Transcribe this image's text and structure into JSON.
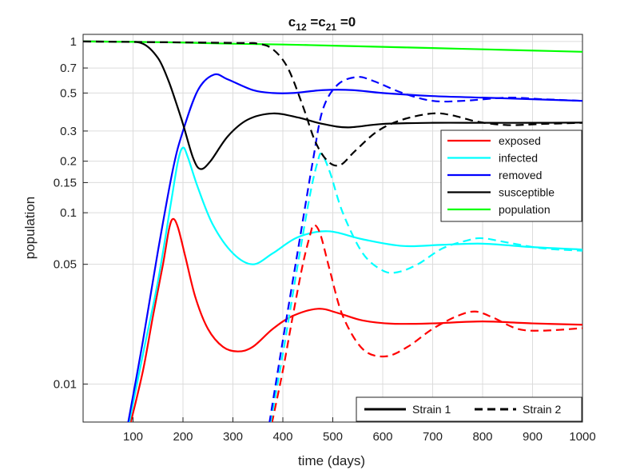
{
  "chart_data": {
    "type": "line",
    "title": {
      "c1": "c",
      "s1": "12",
      "eq1": " =c",
      "s2": "21",
      "eq2": " =0"
    },
    "xlabel": "time (days)",
    "ylabel": "population",
    "xlim": [
      0,
      1000
    ],
    "ylim": [
      0.006,
      1.1
    ],
    "yscale": "log",
    "grid": true,
    "x_ticks": [
      100,
      200,
      300,
      400,
      500,
      600,
      700,
      800,
      900,
      1000
    ],
    "x_tick_labels": [
      "100",
      "200",
      "300",
      "400",
      "500",
      "600",
      "700",
      "800",
      "900",
      "1000"
    ],
    "y_ticks": [
      0.01,
      0.05,
      0.1,
      0.15,
      0.2,
      0.3,
      0.5,
      0.7,
      1
    ],
    "y_tick_labels": [
      "0.01",
      "0.05",
      "0.1",
      "0.15",
      "0.2",
      "0.3",
      "0.5",
      "0.7",
      "1"
    ],
    "legend_location": "upper-right",
    "legend": [
      {
        "label": "exposed",
        "color": "#ff0000"
      },
      {
        "label": "infected",
        "color": "#00ffff"
      },
      {
        "label": "removed",
        "color": "#0000ff"
      },
      {
        "label": "susceptible",
        "color": "#000000"
      },
      {
        "label": "population",
        "color": "#00ff00"
      }
    ],
    "style_legend_location": "bottom-right",
    "style_legend": [
      {
        "label": "Strain 1",
        "dash": "solid"
      },
      {
        "label": "Strain 2",
        "dash": "dashed"
      }
    ],
    "series": [
      {
        "name": "exposed",
        "strain": "Strain 1",
        "color": "#ff0000",
        "dash": "solid",
        "points": [
          [
            95,
            0.0059
          ],
          [
            120,
            0.012
          ],
          [
            140,
            0.025
          ],
          [
            160,
            0.05
          ],
          [
            172,
            0.08
          ],
          [
            180,
            0.092
          ],
          [
            190,
            0.082
          ],
          [
            205,
            0.055
          ],
          [
            225,
            0.032
          ],
          [
            250,
            0.021
          ],
          [
            280,
            0.0165
          ],
          [
            310,
            0.0155
          ],
          [
            340,
            0.0165
          ],
          [
            380,
            0.021
          ],
          [
            420,
            0.025
          ],
          [
            470,
            0.0275
          ],
          [
            510,
            0.026
          ],
          [
            560,
            0.0235
          ],
          [
            620,
            0.0225
          ],
          [
            700,
            0.0226
          ],
          [
            800,
            0.0232
          ],
          [
            900,
            0.0226
          ],
          [
            1000,
            0.0222
          ]
        ]
      },
      {
        "name": "infected",
        "strain": "Strain 1",
        "color": "#00ffff",
        "dash": "solid",
        "points": [
          [
            92,
            0.0059
          ],
          [
            120,
            0.015
          ],
          [
            150,
            0.04
          ],
          [
            175,
            0.11
          ],
          [
            190,
            0.2
          ],
          [
            200,
            0.24
          ],
          [
            210,
            0.21
          ],
          [
            230,
            0.14
          ],
          [
            260,
            0.085
          ],
          [
            300,
            0.058
          ],
          [
            340,
            0.05
          ],
          [
            380,
            0.058
          ],
          [
            430,
            0.072
          ],
          [
            490,
            0.078
          ],
          [
            560,
            0.07
          ],
          [
            640,
            0.064
          ],
          [
            720,
            0.065
          ],
          [
            800,
            0.066
          ],
          [
            900,
            0.063
          ],
          [
            1000,
            0.061
          ]
        ]
      },
      {
        "name": "removed",
        "strain": "Strain 1",
        "color": "#0000ff",
        "dash": "solid",
        "points": [
          [
            90,
            0.0059
          ],
          [
            120,
            0.018
          ],
          [
            150,
            0.06
          ],
          [
            180,
            0.18
          ],
          [
            200,
            0.3
          ],
          [
            230,
            0.52
          ],
          [
            262,
            0.64
          ],
          [
            290,
            0.6
          ],
          [
            340,
            0.52
          ],
          [
            380,
            0.5
          ],
          [
            420,
            0.5
          ],
          [
            480,
            0.52
          ],
          [
            540,
            0.52
          ],
          [
            600,
            0.5
          ],
          [
            700,
            0.48
          ],
          [
            800,
            0.47
          ],
          [
            900,
            0.46
          ],
          [
            1000,
            0.45
          ]
        ]
      },
      {
        "name": "susceptible",
        "strain": "Strain 1",
        "color": "#000000",
        "dash": "solid",
        "points": [
          [
            0,
            1
          ],
          [
            80,
            0.995
          ],
          [
            120,
            0.97
          ],
          [
            150,
            0.8
          ],
          [
            170,
            0.6
          ],
          [
            185,
            0.45
          ],
          [
            200,
            0.33
          ],
          [
            220,
            0.21
          ],
          [
            235,
            0.18
          ],
          [
            255,
            0.2
          ],
          [
            290,
            0.28
          ],
          [
            330,
            0.35
          ],
          [
            380,
            0.38
          ],
          [
            430,
            0.36
          ],
          [
            480,
            0.33
          ],
          [
            530,
            0.315
          ],
          [
            600,
            0.33
          ],
          [
            700,
            0.335
          ],
          [
            800,
            0.335
          ],
          [
            900,
            0.335
          ],
          [
            1000,
            0.336
          ]
        ]
      },
      {
        "name": "population",
        "strain": "Strain 1",
        "color": "#00ff00",
        "dash": "solid",
        "points": [
          [
            0,
            1
          ],
          [
            100,
            0.995
          ],
          [
            200,
            0.985
          ],
          [
            300,
            0.97
          ],
          [
            400,
            0.96
          ],
          [
            500,
            0.945
          ],
          [
            600,
            0.93
          ],
          [
            700,
            0.915
          ],
          [
            800,
            0.9
          ],
          [
            900,
            0.885
          ],
          [
            1000,
            0.87
          ]
        ]
      },
      {
        "name": "exposed",
        "strain": "Strain 2",
        "color": "#ff0000",
        "dash": "dashed",
        "points": [
          [
            378,
            0.0059
          ],
          [
            400,
            0.012
          ],
          [
            420,
            0.025
          ],
          [
            440,
            0.05
          ],
          [
            455,
            0.075
          ],
          [
            462,
            0.085
          ],
          [
            475,
            0.075
          ],
          [
            495,
            0.045
          ],
          [
            520,
            0.025
          ],
          [
            560,
            0.016
          ],
          [
            605,
            0.0145
          ],
          [
            650,
            0.0165
          ],
          [
            700,
            0.021
          ],
          [
            750,
            0.025
          ],
          [
            785,
            0.0265
          ],
          [
            820,
            0.0245
          ],
          [
            870,
            0.021
          ],
          [
            920,
            0.0205
          ],
          [
            1000,
            0.0212
          ]
        ]
      },
      {
        "name": "infected",
        "strain": "Strain 2",
        "color": "#00ffff",
        "dash": "dashed",
        "points": [
          [
            375,
            0.0059
          ],
          [
            400,
            0.015
          ],
          [
            430,
            0.05
          ],
          [
            455,
            0.13
          ],
          [
            470,
            0.2
          ],
          [
            478,
            0.22
          ],
          [
            495,
            0.17
          ],
          [
            520,
            0.1
          ],
          [
            560,
            0.058
          ],
          [
            600,
            0.046
          ],
          [
            630,
            0.045
          ],
          [
            670,
            0.05
          ],
          [
            720,
            0.062
          ],
          [
            770,
            0.069
          ],
          [
            800,
            0.071
          ],
          [
            850,
            0.067
          ],
          [
            920,
            0.062
          ],
          [
            1000,
            0.06
          ]
        ]
      },
      {
        "name": "removed",
        "strain": "Strain 2",
        "color": "#0000ff",
        "dash": "dashed",
        "points": [
          [
            373,
            0.0059
          ],
          [
            400,
            0.018
          ],
          [
            430,
            0.06
          ],
          [
            460,
            0.2
          ],
          [
            480,
            0.4
          ],
          [
            510,
            0.56
          ],
          [
            548,
            0.62
          ],
          [
            580,
            0.59
          ],
          [
            640,
            0.5
          ],
          [
            700,
            0.45
          ],
          [
            760,
            0.45
          ],
          [
            850,
            0.47
          ],
          [
            920,
            0.46
          ],
          [
            1000,
            0.45
          ]
        ]
      },
      {
        "name": "susceptible",
        "strain": "Strain 2",
        "color": "#000000",
        "dash": "dashed",
        "points": [
          [
            0,
            1
          ],
          [
            300,
            0.98
          ],
          [
            350,
            0.97
          ],
          [
            380,
            0.9
          ],
          [
            410,
            0.7
          ],
          [
            440,
            0.42
          ],
          [
            465,
            0.26
          ],
          [
            490,
            0.2
          ],
          [
            515,
            0.19
          ],
          [
            545,
            0.23
          ],
          [
            590,
            0.3
          ],
          [
            640,
            0.35
          ],
          [
            700,
            0.38
          ],
          [
            740,
            0.37
          ],
          [
            790,
            0.34
          ],
          [
            850,
            0.325
          ],
          [
            920,
            0.33
          ],
          [
            1000,
            0.335
          ]
        ]
      }
    ]
  }
}
